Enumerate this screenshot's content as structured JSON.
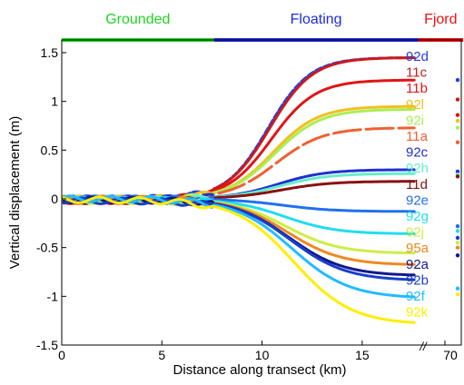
{
  "chart_data": {
    "type": "line",
    "title": "",
    "xlabel": "Distance along transect (km)",
    "ylabel": "Vertical displacement (m)",
    "xlim": [
      0,
      17.5
    ],
    "ylim": [
      -1.5,
      1.5
    ],
    "x_ticks": [
      0,
      5,
      10,
      15
    ],
    "y_ticks": [
      1.5,
      1,
      0.5,
      0,
      -0.5,
      -1,
      -1.5
    ],
    "break_tick": "70",
    "break_marker": "//",
    "zones": [
      {
        "label": "Grounded",
        "x_start": 0,
        "x_end": 7.6,
        "color": "#22d422"
      },
      {
        "label": "Floating",
        "x_start": 7.6,
        "x_end": 17.8,
        "color": "#1f2bd8"
      },
      {
        "label": "Fjord",
        "x_start": 17.8,
        "x_end": 20.4,
        "color": "#ee1111"
      }
    ],
    "series": [
      {
        "name": "92d",
        "color": "#2040e8",
        "final": 1.45,
        "fjord": 1.22,
        "r": 0.0,
        "dash": "7 3"
      },
      {
        "name": "11c",
        "color": "#cc1a1a",
        "final": 1.45,
        "fjord": 1.02,
        "r": 0.05,
        "dash": ""
      },
      {
        "name": "11b",
        "color": "#e01515",
        "final": 1.22,
        "fjord": 0.86,
        "r": 0.1,
        "dash": ""
      },
      {
        "name": "92l",
        "color": "#f0c020",
        "final": 0.95,
        "fjord": 0.8,
        "r": 0.15,
        "dash": ""
      },
      {
        "name": "92i",
        "color": "#aaee55",
        "final": 0.92,
        "fjord": 0.73,
        "r": 0.2,
        "dash": ""
      },
      {
        "name": "11a",
        "color": "#f06030",
        "final": 0.73,
        "fjord": 0.58,
        "r": 0.25,
        "dash": "30 6"
      },
      {
        "name": "92c",
        "color": "#2030d0",
        "final": 0.3,
        "fjord": 0.28,
        "r": 0.3,
        "dash": ""
      },
      {
        "name": "92h",
        "color": "#66eecc",
        "final": 0.26,
        "fjord": 0.25,
        "r": 0.35,
        "dash": ""
      },
      {
        "name": "11d",
        "color": "#881111",
        "final": 0.18,
        "fjord": 0.23,
        "r": 0.4,
        "dash": ""
      },
      {
        "name": "92e",
        "color": "#2070f0",
        "final": -0.13,
        "fjord": -0.28,
        "r": 0.45,
        "dash": ""
      },
      {
        "name": "92g",
        "color": "#22ddee",
        "final": -0.36,
        "fjord": -0.33,
        "r": 0.5,
        "dash": ""
      },
      {
        "name": "92j",
        "color": "#ccee44",
        "final": -0.56,
        "fjord": -0.45,
        "r": 0.55,
        "dash": ""
      },
      {
        "name": "95a",
        "color": "#f08820",
        "final": -0.68,
        "fjord": -0.5,
        "r": 0.6,
        "dash": ""
      },
      {
        "name": "92a",
        "color": "#101890",
        "final": -0.79,
        "fjord": -0.58,
        "r": 0.65,
        "dash": ""
      },
      {
        "name": "92b",
        "color": "#1a3fc8",
        "final": -0.84,
        "fjord": -0.4,
        "r": 0.7,
        "dash": ""
      },
      {
        "name": "92f",
        "color": "#22bbff",
        "final": -1.02,
        "fjord": -0.92,
        "r": 0.75,
        "dash": ""
      },
      {
        "name": "92k",
        "color": "#ffee00",
        "final": -1.29,
        "fjord": -0.98,
        "r": 0.8,
        "dash": ""
      }
    ]
  }
}
